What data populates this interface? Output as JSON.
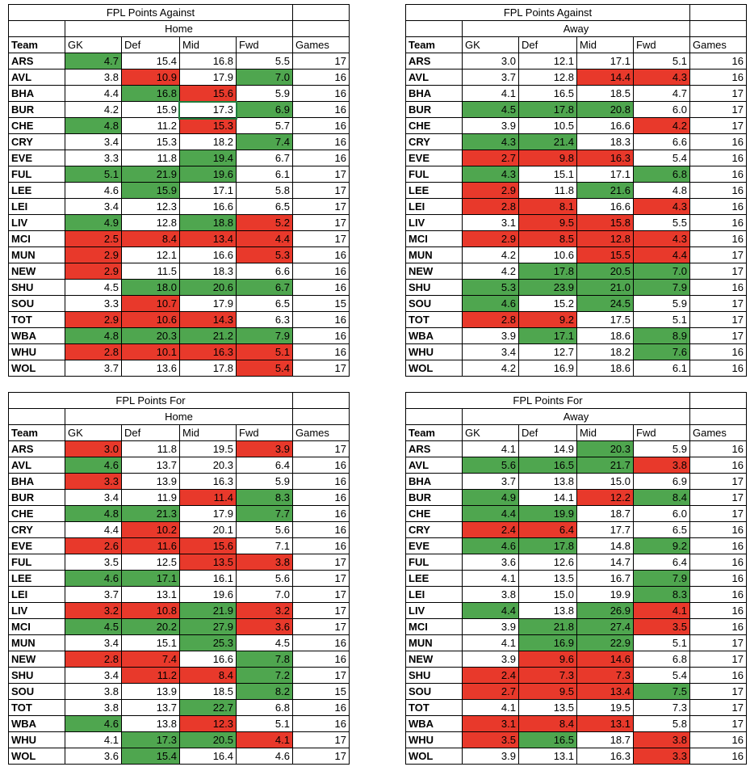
{
  "palette": {
    "g": "#4fa64f",
    "r": "#e8392b"
  },
  "tables": [
    {
      "title": "FPL Points Against",
      "subtitle": "Home",
      "headers": [
        "Team",
        "GK",
        "Def",
        "Mid",
        "Fwd",
        "Games"
      ],
      "rows": [
        [
          "ARS",
          "4.7",
          "15.4",
          "16.8",
          "5.5",
          "17"
        ],
        [
          "AVL",
          "3.8",
          "10.9",
          "17.9",
          "7.0",
          "16"
        ],
        [
          "BHA",
          "4.4",
          "16.8",
          "15.6",
          "5.9",
          "16"
        ],
        [
          "BUR",
          "4.2",
          "15.9",
          "17.3",
          "6.9",
          "16"
        ],
        [
          "CHE",
          "4.8",
          "11.2",
          "15.3",
          "5.7",
          "16"
        ],
        [
          "CRY",
          "3.4",
          "15.3",
          "18.2",
          "7.4",
          "16"
        ],
        [
          "EVE",
          "3.3",
          "11.8",
          "19.4",
          "6.7",
          "16"
        ],
        [
          "FUL",
          "5.1",
          "21.9",
          "19.6",
          "6.1",
          "17"
        ],
        [
          "LEE",
          "4.6",
          "15.9",
          "17.1",
          "5.8",
          "17"
        ],
        [
          "LEI",
          "3.4",
          "12.3",
          "16.6",
          "6.5",
          "17"
        ],
        [
          "LIV",
          "4.9",
          "12.8",
          "18.8",
          "5.2",
          "17"
        ],
        [
          "MCI",
          "2.5",
          "8.4",
          "13.4",
          "4.4",
          "17"
        ],
        [
          "MUN",
          "2.9",
          "12.1",
          "16.6",
          "5.3",
          "16"
        ],
        [
          "NEW",
          "2.9",
          "11.5",
          "18.3",
          "6.6",
          "16"
        ],
        [
          "SHU",
          "4.5",
          "18.0",
          "20.6",
          "6.7",
          "16"
        ],
        [
          "SOU",
          "3.3",
          "10.7",
          "17.9",
          "6.5",
          "15"
        ],
        [
          "TOT",
          "2.9",
          "10.6",
          "14.3",
          "6.3",
          "16"
        ],
        [
          "WBA",
          "4.8",
          "20.3",
          "21.2",
          "7.9",
          "16"
        ],
        [
          "WHU",
          "2.8",
          "10.1",
          "16.3",
          "5.1",
          "16"
        ],
        [
          "WOL",
          "3.7",
          "13.6",
          "17.8",
          "5.4",
          "17"
        ]
      ],
      "colors": [
        [
          "g",
          null,
          null,
          null
        ],
        [
          null,
          "r",
          null,
          "g"
        ],
        [
          null,
          "g",
          "r",
          null
        ],
        [
          null,
          null,
          null,
          "g"
        ],
        [
          "g",
          null,
          "r",
          null
        ],
        [
          null,
          null,
          null,
          "g"
        ],
        [
          null,
          null,
          "g",
          null
        ],
        [
          "g",
          "g",
          "g",
          null
        ],
        [
          null,
          "g",
          null,
          null
        ],
        [
          null,
          null,
          null,
          null
        ],
        [
          "g",
          null,
          "g",
          "r"
        ],
        [
          "r",
          "r",
          "r",
          "r"
        ],
        [
          "r",
          null,
          null,
          "r"
        ],
        [
          "r",
          null,
          null,
          null
        ],
        [
          null,
          "g",
          "g",
          "g"
        ],
        [
          null,
          "r",
          null,
          null
        ],
        [
          "r",
          "r",
          "r",
          null
        ],
        [
          "g",
          "g",
          "g",
          "g"
        ],
        [
          "r",
          "r",
          "r",
          "r"
        ],
        [
          null,
          null,
          null,
          "r"
        ]
      ]
    },
    {
      "title": "FPL Points Against",
      "subtitle": "Away",
      "headers": [
        "Team",
        "GK",
        "Def",
        "Mid",
        "Fwd",
        "Games"
      ],
      "rows": [
        [
          "ARS",
          "3.0",
          "12.1",
          "17.1",
          "5.1",
          "16"
        ],
        [
          "AVL",
          "3.7",
          "12.8",
          "14.4",
          "4.3",
          "16"
        ],
        [
          "BHA",
          "4.1",
          "16.5",
          "18.5",
          "4.7",
          "17"
        ],
        [
          "BUR",
          "4.5",
          "17.8",
          "20.8",
          "6.0",
          "17"
        ],
        [
          "CHE",
          "3.9",
          "10.5",
          "16.6",
          "4.2",
          "17"
        ],
        [
          "CRY",
          "4.3",
          "21.4",
          "18.3",
          "6.6",
          "16"
        ],
        [
          "EVE",
          "2.7",
          "9.8",
          "16.3",
          "5.4",
          "16"
        ],
        [
          "FUL",
          "4.3",
          "15.1",
          "17.1",
          "6.8",
          "16"
        ],
        [
          "LEE",
          "2.9",
          "11.8",
          "21.6",
          "4.8",
          "16"
        ],
        [
          "LEI",
          "2.8",
          "8.1",
          "16.6",
          "4.3",
          "16"
        ],
        [
          "LIV",
          "3.1",
          "9.5",
          "15.8",
          "5.5",
          "16"
        ],
        [
          "MCI",
          "2.9",
          "8.5",
          "12.8",
          "4.3",
          "16"
        ],
        [
          "MUN",
          "4.2",
          "10.6",
          "15.5",
          "4.4",
          "17"
        ],
        [
          "NEW",
          "4.2",
          "17.8",
          "20.5",
          "7.0",
          "17"
        ],
        [
          "SHU",
          "5.3",
          "23.9",
          "21.0",
          "7.9",
          "16"
        ],
        [
          "SOU",
          "4.6",
          "15.2",
          "24.5",
          "5.9",
          "17"
        ],
        [
          "TOT",
          "2.8",
          "9.2",
          "17.5",
          "5.1",
          "17"
        ],
        [
          "WBA",
          "3.9",
          "17.1",
          "18.6",
          "8.9",
          "17"
        ],
        [
          "WHU",
          "3.4",
          "12.7",
          "18.2",
          "7.6",
          "16"
        ],
        [
          "WOL",
          "4.2",
          "16.9",
          "18.6",
          "6.1",
          "16"
        ]
      ],
      "colors": [
        [
          null,
          null,
          null,
          null
        ],
        [
          null,
          null,
          "r",
          "r"
        ],
        [
          null,
          null,
          null,
          null
        ],
        [
          "g",
          "g",
          "g",
          null
        ],
        [
          null,
          null,
          null,
          "r"
        ],
        [
          "g",
          "g",
          null,
          null
        ],
        [
          "r",
          "r",
          "r",
          null
        ],
        [
          "g",
          null,
          null,
          "g"
        ],
        [
          "r",
          null,
          "g",
          null
        ],
        [
          "r",
          "r",
          null,
          "r"
        ],
        [
          null,
          "r",
          "r",
          null
        ],
        [
          "r",
          "r",
          "r",
          "r"
        ],
        [
          null,
          null,
          "r",
          "r"
        ],
        [
          null,
          "g",
          "g",
          "g"
        ],
        [
          "g",
          "g",
          "g",
          "g"
        ],
        [
          "g",
          null,
          "g",
          null
        ],
        [
          "r",
          "r",
          null,
          null
        ],
        [
          null,
          "g",
          null,
          "g"
        ],
        [
          null,
          null,
          null,
          "g"
        ],
        [
          null,
          null,
          null,
          null
        ]
      ]
    },
    {
      "title": "FPL Points For",
      "subtitle": "Home",
      "headers": [
        "Team",
        "GK",
        "Def",
        "Mid",
        "Fwd",
        "Games"
      ],
      "rows": [
        [
          "ARS",
          "3.0",
          "11.8",
          "19.5",
          "3.9",
          "17"
        ],
        [
          "AVL",
          "4.6",
          "13.7",
          "20.3",
          "6.4",
          "16"
        ],
        [
          "BHA",
          "3.3",
          "13.9",
          "16.3",
          "5.9",
          "16"
        ],
        [
          "BUR",
          "3.4",
          "11.9",
          "11.4",
          "8.3",
          "16"
        ],
        [
          "CHE",
          "4.8",
          "21.3",
          "17.9",
          "7.7",
          "16"
        ],
        [
          "CRY",
          "4.4",
          "10.2",
          "20.1",
          "5.6",
          "16"
        ],
        [
          "EVE",
          "2.6",
          "11.6",
          "15.6",
          "7.1",
          "16"
        ],
        [
          "FUL",
          "3.5",
          "12.5",
          "13.5",
          "3.8",
          "17"
        ],
        [
          "LEE",
          "4.6",
          "17.1",
          "16.1",
          "5.6",
          "17"
        ],
        [
          "LEI",
          "3.7",
          "13.1",
          "19.6",
          "7.0",
          "17"
        ],
        [
          "LIV",
          "3.2",
          "10.8",
          "21.9",
          "3.2",
          "17"
        ],
        [
          "MCI",
          "4.5",
          "20.2",
          "27.9",
          "3.6",
          "17"
        ],
        [
          "MUN",
          "3.4",
          "15.1",
          "25.3",
          "4.5",
          "16"
        ],
        [
          "NEW",
          "2.8",
          "7.4",
          "16.6",
          "7.8",
          "16"
        ],
        [
          "SHU",
          "3.4",
          "11.2",
          "8.4",
          "7.2",
          "17"
        ],
        [
          "SOU",
          "3.8",
          "13.9",
          "18.5",
          "8.2",
          "15"
        ],
        [
          "TOT",
          "3.8",
          "13.7",
          "22.7",
          "6.8",
          "16"
        ],
        [
          "WBA",
          "4.6",
          "13.8",
          "12.3",
          "5.1",
          "16"
        ],
        [
          "WHU",
          "4.1",
          "17.3",
          "20.5",
          "4.1",
          "17"
        ],
        [
          "WOL",
          "3.6",
          "15.4",
          "16.4",
          "4.6",
          "17"
        ]
      ],
      "colors": [
        [
          "r",
          null,
          null,
          "r"
        ],
        [
          "g",
          null,
          null,
          null
        ],
        [
          "r",
          null,
          null,
          null
        ],
        [
          null,
          null,
          "r",
          "g"
        ],
        [
          "g",
          "g",
          null,
          "g"
        ],
        [
          null,
          "r",
          null,
          null
        ],
        [
          "r",
          "r",
          "r",
          null
        ],
        [
          null,
          null,
          "r",
          "r"
        ],
        [
          "g",
          "g",
          null,
          null
        ],
        [
          null,
          null,
          null,
          null
        ],
        [
          "r",
          "r",
          "g",
          "r"
        ],
        [
          "g",
          "g",
          "g",
          "r"
        ],
        [
          null,
          null,
          "g",
          null
        ],
        [
          "r",
          "r",
          null,
          "g"
        ],
        [
          null,
          "r",
          "r",
          "g"
        ],
        [
          null,
          null,
          null,
          "g"
        ],
        [
          null,
          null,
          "g",
          null
        ],
        [
          "g",
          null,
          "r",
          null
        ],
        [
          null,
          "g",
          "g",
          "r"
        ],
        [
          null,
          "g",
          null,
          null
        ]
      ]
    },
    {
      "title": "FPL Points For",
      "subtitle": "Away",
      "headers": [
        "Team",
        "GK",
        "Def",
        "Mid",
        "Fwd",
        "Games"
      ],
      "rows": [
        [
          "ARS",
          "4.1",
          "14.9",
          "20.3",
          "5.9",
          "16"
        ],
        [
          "AVL",
          "5.6",
          "16.5",
          "21.7",
          "3.8",
          "16"
        ],
        [
          "BHA",
          "3.7",
          "13.8",
          "15.0",
          "6.9",
          "17"
        ],
        [
          "BUR",
          "4.9",
          "14.1",
          "12.2",
          "8.4",
          "17"
        ],
        [
          "CHE",
          "4.4",
          "19.9",
          "18.7",
          "6.0",
          "17"
        ],
        [
          "CRY",
          "2.4",
          "6.4",
          "17.7",
          "6.5",
          "16"
        ],
        [
          "EVE",
          "4.6",
          "17.8",
          "14.8",
          "9.2",
          "16"
        ],
        [
          "FUL",
          "3.6",
          "12.6",
          "14.7",
          "6.4",
          "16"
        ],
        [
          "LEE",
          "4.1",
          "13.5",
          "16.7",
          "7.9",
          "16"
        ],
        [
          "LEI",
          "3.8",
          "15.0",
          "19.9",
          "8.3",
          "16"
        ],
        [
          "LIV",
          "4.4",
          "13.8",
          "26.9",
          "4.1",
          "16"
        ],
        [
          "MCI",
          "3.9",
          "21.8",
          "27.4",
          "3.5",
          "16"
        ],
        [
          "MUN",
          "4.1",
          "16.9",
          "22.9",
          "5.1",
          "17"
        ],
        [
          "NEW",
          "3.9",
          "9.6",
          "14.6",
          "6.8",
          "17"
        ],
        [
          "SHU",
          "2.4",
          "7.3",
          "7.3",
          "5.4",
          "16"
        ],
        [
          "SOU",
          "2.7",
          "9.5",
          "13.4",
          "7.5",
          "17"
        ],
        [
          "TOT",
          "4.1",
          "13.5",
          "19.5",
          "7.3",
          "17"
        ],
        [
          "WBA",
          "3.1",
          "8.4",
          "13.1",
          "5.8",
          "17"
        ],
        [
          "WHU",
          "3.5",
          "16.5",
          "18.7",
          "3.8",
          "16"
        ],
        [
          "WOL",
          "3.9",
          "13.1",
          "16.3",
          "3.3",
          "16"
        ]
      ],
      "colors": [
        [
          null,
          null,
          "g",
          null
        ],
        [
          "g",
          "g",
          "g",
          "r"
        ],
        [
          null,
          null,
          null,
          null
        ],
        [
          "g",
          null,
          "r",
          "g"
        ],
        [
          "g",
          "g",
          null,
          null
        ],
        [
          "r",
          "r",
          null,
          null
        ],
        [
          "g",
          "g",
          null,
          "g"
        ],
        [
          null,
          null,
          null,
          null
        ],
        [
          null,
          null,
          null,
          "g"
        ],
        [
          null,
          null,
          null,
          "g"
        ],
        [
          "g",
          null,
          "g",
          "r"
        ],
        [
          null,
          "g",
          "g",
          "r"
        ],
        [
          null,
          "g",
          "g",
          null
        ],
        [
          null,
          "r",
          "r",
          null
        ],
        [
          "r",
          "r",
          "r",
          null
        ],
        [
          "r",
          "r",
          "r",
          "g"
        ],
        [
          null,
          null,
          null,
          null
        ],
        [
          "r",
          "r",
          "r",
          null
        ],
        [
          "r",
          "g",
          null,
          "r"
        ],
        [
          null,
          null,
          null,
          "r"
        ]
      ]
    }
  ]
}
